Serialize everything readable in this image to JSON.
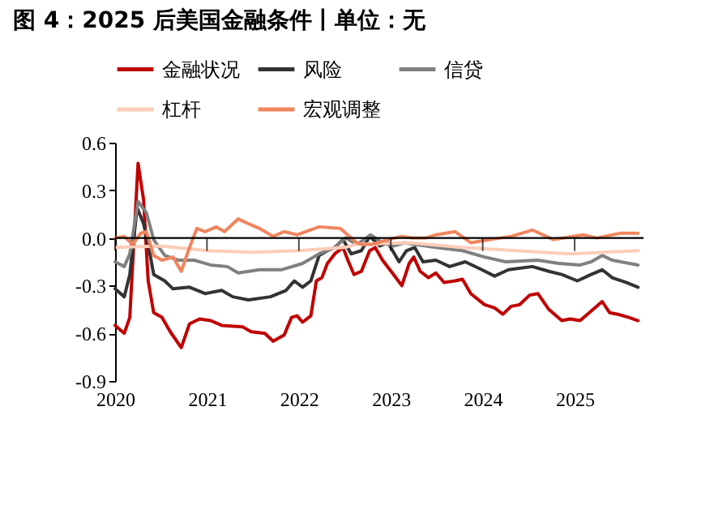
{
  "chart_data": {
    "type": "line",
    "title": "图 4：2025 后美国金融条件丨单位：无",
    "xlim": [
      2020,
      2025.75
    ],
    "xticks": [
      2020,
      2021,
      2022,
      2023,
      2024,
      2025
    ],
    "ylim": [
      -0.9,
      0.6
    ],
    "yticks": [
      -0.9,
      -0.6,
      -0.3,
      {
        "value": 0,
        "label": "0.0"
      },
      0.3,
      0.6
    ],
    "grid": false,
    "legend": "top",
    "line_style": "solid",
    "marker": "none",
    "ref_lines": [
      {
        "axis": "y",
        "value": 0,
        "color": "#000000"
      }
    ],
    "series": [
      {
        "name": "金融状况",
        "color": "#c00000",
        "x": [
          2020.0,
          2020.1,
          2020.16,
          2020.25,
          2020.31,
          2020.36,
          2020.42,
          2020.51,
          2020.6,
          2020.72,
          2020.81,
          2020.92,
          2021.04,
          2021.16,
          2021.39,
          2021.48,
          2021.63,
          2021.72,
          2021.84,
          2021.92,
          2021.98,
          2022.04,
          2022.13,
          2022.19,
          2022.25,
          2022.31,
          2022.39,
          2022.48,
          2022.54,
          2022.6,
          2022.68,
          2022.77,
          2022.83,
          2022.91,
          2023.03,
          2023.12,
          2023.2,
          2023.25,
          2023.32,
          2023.41,
          2023.49,
          2023.58,
          2023.7,
          2023.78,
          2023.87,
          2024.02,
          2024.13,
          2024.22,
          2024.31,
          2024.4,
          2024.51,
          2024.6,
          2024.72,
          2024.86,
          2024.95,
          2025.06,
          2025.18,
          2025.3,
          2025.38,
          2025.47,
          2025.59,
          2025.69
        ],
        "values": [
          -0.55,
          -0.6,
          -0.5,
          0.47,
          0.24,
          -0.27,
          -0.47,
          -0.5,
          -0.59,
          -0.69,
          -0.54,
          -0.51,
          -0.52,
          -0.55,
          -0.56,
          -0.59,
          -0.6,
          -0.65,
          -0.61,
          -0.5,
          -0.49,
          -0.53,
          -0.49,
          -0.27,
          -0.25,
          -0.16,
          -0.1,
          -0.06,
          -0.15,
          -0.23,
          -0.21,
          -0.08,
          -0.06,
          -0.14,
          -0.23,
          -0.3,
          -0.16,
          -0.12,
          -0.21,
          -0.25,
          -0.22,
          -0.28,
          -0.27,
          -0.26,
          -0.35,
          -0.42,
          -0.44,
          -0.48,
          -0.43,
          -0.42,
          -0.36,
          -0.35,
          -0.45,
          -0.52,
          -0.51,
          -0.52,
          -0.46,
          -0.4,
          -0.47,
          -0.48,
          -0.5,
          -0.52
        ]
      },
      {
        "name": "风险",
        "color": "#333333",
        "x": [
          2020.0,
          2020.1,
          2020.16,
          2020.24,
          2020.31,
          2020.36,
          2020.42,
          2020.54,
          2020.63,
          2020.81,
          2020.98,
          2021.16,
          2021.28,
          2021.45,
          2021.69,
          2021.86,
          2021.95,
          2022.04,
          2022.13,
          2022.22,
          2022.31,
          2022.39,
          2022.48,
          2022.57,
          2022.68,
          2022.77,
          2022.88,
          2022.97,
          2023.09,
          2023.17,
          2023.26,
          2023.35,
          2023.49,
          2023.64,
          2023.81,
          2023.99,
          2024.13,
          2024.28,
          2024.54,
          2024.72,
          2024.86,
          2025.03,
          2025.18,
          2025.3,
          2025.41,
          2025.56,
          2025.69
        ],
        "values": [
          -0.32,
          -0.37,
          -0.23,
          0.19,
          0.09,
          -0.04,
          -0.23,
          -0.27,
          -0.32,
          -0.31,
          -0.35,
          -0.33,
          -0.37,
          -0.39,
          -0.37,
          -0.33,
          -0.27,
          -0.31,
          -0.27,
          -0.11,
          -0.08,
          -0.06,
          -0.01,
          -0.1,
          -0.08,
          0.01,
          -0.05,
          -0.03,
          -0.15,
          -0.08,
          -0.06,
          -0.15,
          -0.14,
          -0.18,
          -0.15,
          -0.2,
          -0.24,
          -0.2,
          -0.18,
          -0.21,
          -0.23,
          -0.27,
          -0.23,
          -0.2,
          -0.25,
          -0.28,
          -0.31
        ]
      },
      {
        "name": "信贷",
        "color": "#808080",
        "x": [
          2020.0,
          2020.1,
          2020.16,
          2020.25,
          2020.34,
          2020.42,
          2020.54,
          2020.69,
          2020.86,
          2021.04,
          2021.22,
          2021.34,
          2021.57,
          2021.81,
          2022.04,
          2022.22,
          2022.39,
          2022.51,
          2022.63,
          2022.71,
          2022.78,
          2022.91,
          2023.03,
          2023.15,
          2023.26,
          2023.49,
          2023.78,
          2024.02,
          2024.25,
          2024.6,
          2024.83,
          2025.06,
          2025.18,
          2025.3,
          2025.41,
          2025.69
        ],
        "values": [
          -0.15,
          -0.18,
          -0.1,
          0.23,
          0.16,
          -0.01,
          -0.11,
          -0.14,
          -0.14,
          -0.17,
          -0.18,
          -0.22,
          -0.2,
          -0.2,
          -0.16,
          -0.1,
          -0.06,
          0.0,
          -0.04,
          -0.01,
          0.02,
          -0.03,
          -0.05,
          -0.03,
          -0.04,
          -0.06,
          -0.08,
          -0.12,
          -0.15,
          -0.14,
          -0.16,
          -0.17,
          -0.15,
          -0.11,
          -0.14,
          -0.17
        ]
      },
      {
        "name": "杠杆",
        "color": "#fbcdb8",
        "x": [
          2020.0,
          2020.5,
          2021.0,
          2021.5,
          2022.0,
          2022.5,
          2022.62,
          2023.2,
          2023.78,
          2024.36,
          2024.95,
          2025.69
        ],
        "values": [
          -0.06,
          -0.05,
          -0.08,
          -0.09,
          -0.08,
          -0.06,
          -0.04,
          -0.03,
          -0.06,
          -0.08,
          -0.1,
          -0.08
        ]
      },
      {
        "name": "宏观调整",
        "color": "#f0855e",
        "x": [
          2020.0,
          2020.1,
          2020.19,
          2020.28,
          2020.34,
          2020.42,
          2020.51,
          2020.63,
          2020.72,
          2020.81,
          2020.89,
          2020.98,
          2021.1,
          2021.19,
          2021.34,
          2021.45,
          2021.57,
          2021.72,
          2021.84,
          2021.98,
          2022.22,
          2022.45,
          2022.63,
          2022.68,
          2022.8,
          2022.97,
          2023.12,
          2023.23,
          2023.38,
          2023.49,
          2023.7,
          2023.87,
          2024.08,
          2024.31,
          2024.54,
          2024.77,
          2025.09,
          2025.24,
          2025.5,
          2025.69
        ],
        "values": [
          0.0,
          0.01,
          -0.04,
          0.03,
          0.04,
          -0.11,
          -0.14,
          -0.12,
          -0.21,
          -0.06,
          0.06,
          0.04,
          0.07,
          0.04,
          0.12,
          0.09,
          0.06,
          0.01,
          0.04,
          0.02,
          0.07,
          0.06,
          -0.03,
          -0.04,
          -0.04,
          -0.01,
          0.01,
          0.0,
          0.0,
          0.02,
          0.04,
          -0.03,
          -0.01,
          0.01,
          0.05,
          -0.01,
          0.02,
          0.0,
          0.03,
          0.03
        ]
      }
    ]
  }
}
